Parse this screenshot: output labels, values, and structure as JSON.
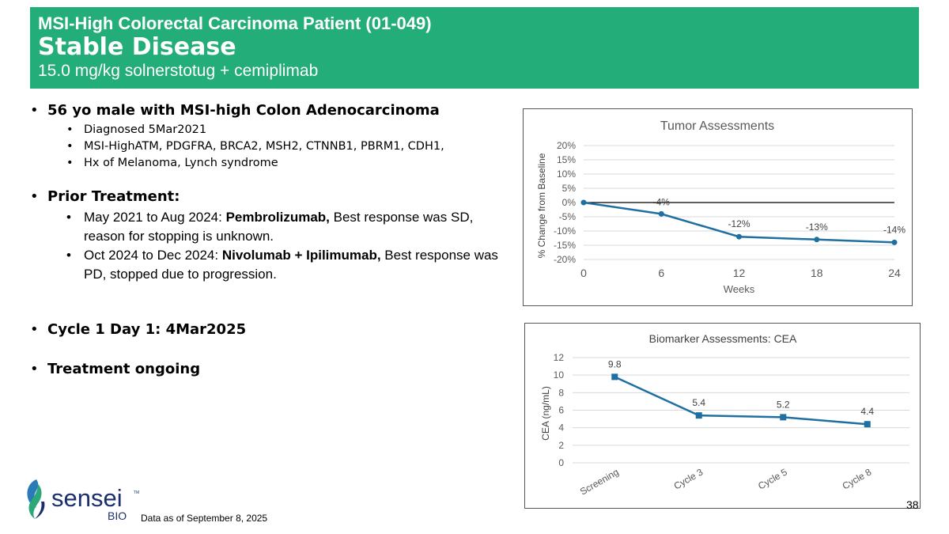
{
  "header": {
    "line1": "MSI-High Colorectal Carcinoma Patient (01-049)",
    "line2": "Stable Disease",
    "line3": "15.0 mg/kg solnerstotug + cemiplimab"
  },
  "bullets": {
    "patient": "56 yo male with MSI-high Colon Adenocarcinoma",
    "patient_sub": [
      "Diagnosed 5Mar2021",
      "MSI-HighATM, PDGFRA, BRCA2, MSH2, CTNNB1, PBRM1, CDH1,",
      "Hx of Melanoma, Lynch syndrome"
    ],
    "prior_title": "Prior Treatment:",
    "prior1_pre": "May 2021 to Aug 2024: ",
    "prior1_bold": "Pembrolizumab,",
    "prior1_post": " Best response was SD, reason for stopping is unknown.",
    "prior2_pre": "Oct 2024 to Dec 2024:  ",
    "prior2_bold": "Nivolumab + Ipilimumab,",
    "prior2_post": " Best response was PD, stopped due to progression.",
    "cycle": "Cycle 1 Day 1: 4Mar2025",
    "ongoing": "Treatment ongoing"
  },
  "chart_data": [
    {
      "type": "line",
      "title": "Tumor Assessments",
      "xlabel": "Weeks",
      "ylabel": "% Change from Baseline",
      "x": [
        0,
        6,
        12,
        18,
        24
      ],
      "values": [
        0,
        -4,
        -12,
        -13,
        -14
      ],
      "data_labels": [
        "",
        "-4%",
        "-12%",
        "-13%",
        "-14%"
      ],
      "x_ticks": [
        "0",
        "6",
        "12",
        "18",
        "24"
      ],
      "y_ticks": [
        "20%",
        "15%",
        "10%",
        "5%",
        "0%",
        "-5%",
        "-10%",
        "-15%",
        "-20%"
      ],
      "ylim": [
        -20,
        20
      ],
      "xlim": [
        0,
        24
      ],
      "color": "#1f6fa0",
      "marker": "circle",
      "grid": true
    },
    {
      "type": "line",
      "title": "Biomarker Assessments: CEA",
      "xlabel": "",
      "ylabel": "CEA (ng/mL)",
      "categories": [
        "Screening",
        "Cycle 3",
        "Cycle 5",
        "Cycle 8"
      ],
      "values": [
        9.8,
        5.4,
        5.2,
        4.4
      ],
      "data_labels": [
        "9.8",
        "5.4",
        "5.2",
        "4.4"
      ],
      "y_ticks": [
        "12",
        "10",
        "8",
        "6",
        "4",
        "2",
        "0"
      ],
      "ylim": [
        0,
        12
      ],
      "color": "#1f6fa0",
      "marker": "square",
      "grid": true
    }
  ],
  "logo": {
    "word": "sensei",
    "tm": "TM",
    "sub": "BIO",
    "colors": {
      "dark": "#1b2f6b",
      "green": "#2aa878",
      "blue": "#2a7ab8"
    }
  },
  "footnote": "Data as of September 8, 2025",
  "page_number": "38"
}
